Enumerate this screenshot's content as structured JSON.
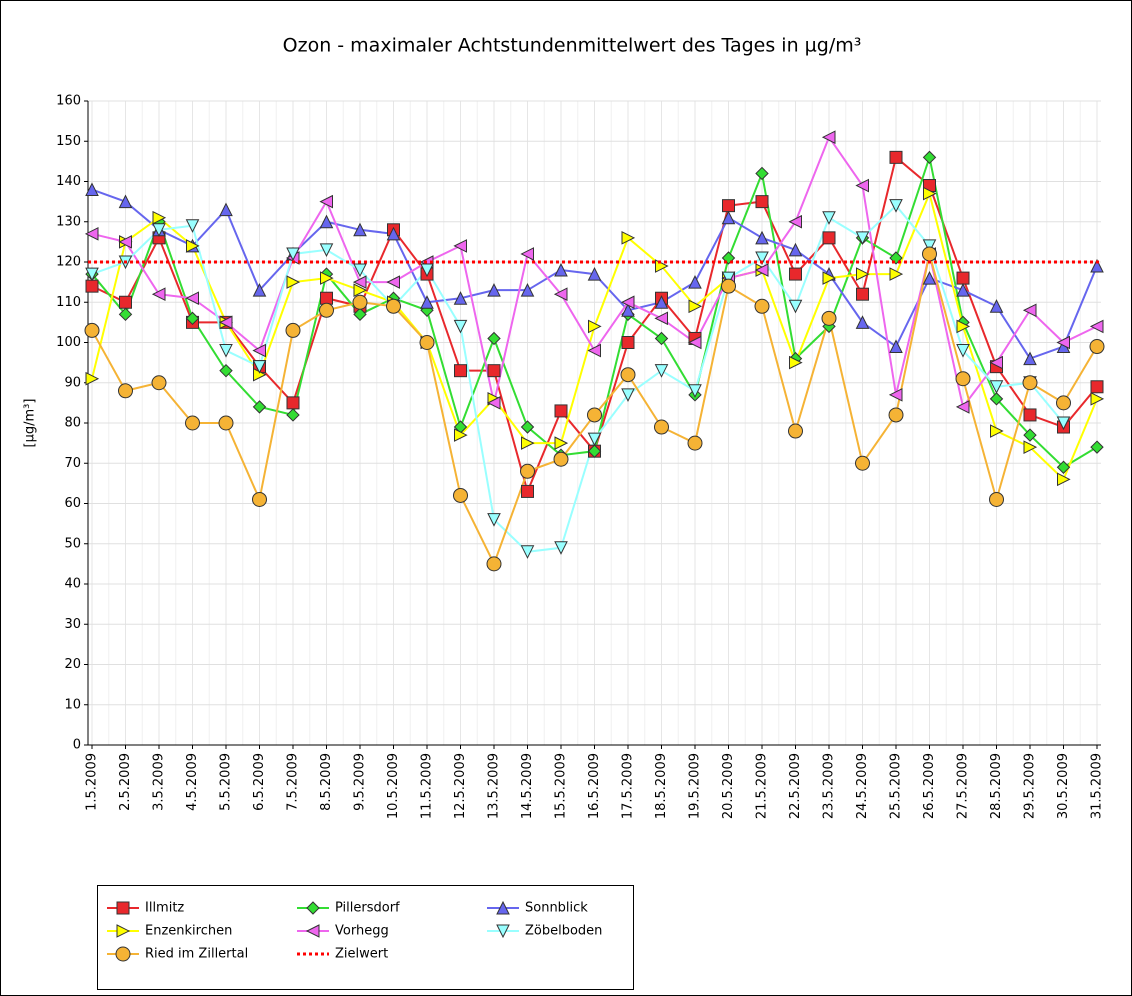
{
  "chart_data": {
    "type": "line",
    "title": "Ozon -  maximaler Achtstundenmittelwert des Tages in µg/m³",
    "y_label": "[µg/m³]",
    "categories": [
      "1.5.2009",
      "2.5.2009",
      "3.5.2009",
      "4.5.2009",
      "5.5.2009",
      "6.5.2009",
      "7.5.2009",
      "8.5.2009",
      "9.5.2009",
      "10.5.2009",
      "11.5.2009",
      "12.5.2009",
      "13.5.2009",
      "14.5.2009",
      "15.5.2009",
      "16.5.2009",
      "17.5.2009",
      "18.5.2009",
      "19.5.2009",
      "20.5.2009",
      "21.5.2009",
      "22.5.2009",
      "23.5.2009",
      "24.5.2009",
      "25.5.2009",
      "26.5.2009",
      "27.5.2009",
      "28.5.2009",
      "29.5.2009",
      "30.5.2009",
      "31.5.2009"
    ],
    "series": [
      {
        "name": "Illmitz",
        "color": "#e8282c",
        "marker": "square",
        "values": [
          114,
          110,
          126,
          105,
          105,
          94,
          85,
          111,
          109,
          128,
          117,
          93,
          93,
          63,
          83,
          73,
          100,
          111,
          101,
          134,
          135,
          117,
          126,
          112,
          146,
          139,
          116,
          94,
          82,
          79,
          89
        ]
      },
      {
        "name": "Pillersdorf",
        "color": "#33dd33",
        "marker": "diamond",
        "values": [
          117,
          107,
          130,
          106,
          93,
          84,
          82,
          117,
          107,
          111,
          108,
          79,
          101,
          79,
          72,
          73,
          107,
          101,
          87,
          121,
          142,
          96,
          104,
          126,
          121,
          146,
          105,
          86,
          77,
          69,
          74
        ]
      },
      {
        "name": "Sonnblick",
        "color": "#6666ee",
        "marker": "triangle-up",
        "values": [
          138,
          135,
          128,
          124,
          133,
          113,
          122,
          130,
          128,
          127,
          110,
          111,
          113,
          113,
          118,
          117,
          108,
          110,
          115,
          131,
          126,
          123,
          117,
          105,
          99,
          116,
          113,
          109,
          96,
          99,
          119
        ]
      },
      {
        "name": "Enzenkirchen",
        "color": "#ffff00",
        "marker": "triangle-right",
        "values": [
          91,
          125,
          131,
          124,
          105,
          92,
          115,
          116,
          113,
          110,
          100,
          77,
          86,
          75,
          75,
          104,
          126,
          119,
          109,
          116,
          118,
          95,
          116,
          117,
          117,
          137,
          104,
          78,
          74,
          66,
          86
        ]
      },
      {
        "name": "Vorhegg",
        "color": "#ee66ee",
        "marker": "triangle-left",
        "values": [
          127,
          125,
          112,
          111,
          105,
          98,
          121,
          135,
          115,
          115,
          120,
          124,
          85,
          122,
          112,
          98,
          110,
          106,
          100,
          116,
          118,
          130,
          151,
          139,
          87,
          122,
          84,
          95,
          108,
          100,
          104
        ]
      },
      {
        "name": "Zöbelboden",
        "color": "#99ffff",
        "marker": "triangle-down",
        "values": [
          117,
          120,
          128,
          129,
          98,
          94,
          122,
          123,
          118,
          109,
          118,
          104,
          56,
          48,
          49,
          76,
          87,
          93,
          88,
          116,
          121,
          109,
          131,
          126,
          134,
          124,
          98,
          89,
          90,
          80,
          null
        ]
      },
      {
        "name": "Ried im Zillertal",
        "color": "#f5b335",
        "marker": "circle",
        "values": [
          103,
          88,
          90,
          80,
          80,
          61,
          103,
          108,
          110,
          109,
          100,
          62,
          45,
          68,
          71,
          82,
          92,
          79,
          75,
          114,
          109,
          78,
          106,
          70,
          82,
          122,
          91,
          61,
          90,
          85,
          99
        ]
      }
    ],
    "reference_line": {
      "name": "Zielwert",
      "value": 120,
      "color": "#ff0000"
    },
    "ylim": [
      0,
      160
    ],
    "yticks": [
      0,
      10,
      20,
      30,
      40,
      50,
      60,
      70,
      80,
      90,
      100,
      110,
      120,
      130,
      140,
      150,
      160
    ],
    "grid": true
  }
}
